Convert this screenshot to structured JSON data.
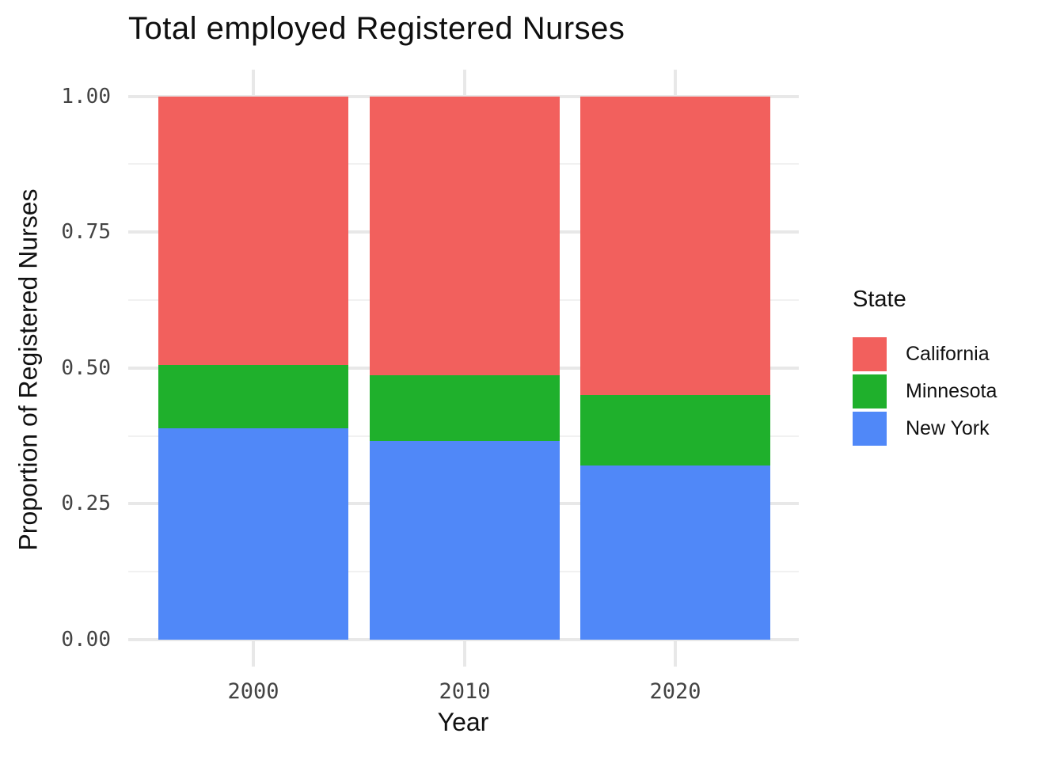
{
  "title": "Total employed Registered Nurses",
  "axes": {
    "x": {
      "label": "Year",
      "ticks": [
        "2000",
        "2010",
        "2020"
      ]
    },
    "y": {
      "label": "Proportion of Registered Nurses",
      "ticks": [
        {
          "label": "0.00",
          "value": 0.0
        },
        {
          "label": "0.25",
          "value": 0.25
        },
        {
          "label": "0.50",
          "value": 0.5
        },
        {
          "label": "0.75",
          "value": 0.75
        },
        {
          "label": "1.00",
          "value": 1.0
        }
      ]
    }
  },
  "legend": {
    "title": "State"
  },
  "chart_data": {
    "type": "bar",
    "subtype": "stacked-proportion",
    "title": "Total employed Registered Nurses",
    "xlabel": "Year",
    "ylabel": "Proportion of Registered Nurses",
    "categories": [
      "2000",
      "2010",
      "2020"
    ],
    "series": [
      {
        "name": "California",
        "color": "#F2605D",
        "values": [
          0.495,
          0.513,
          0.55
        ]
      },
      {
        "name": "Minnesota",
        "color": "#1FB02C",
        "values": [
          0.116,
          0.121,
          0.13
        ]
      },
      {
        "name": "New York",
        "color": "#5088F8",
        "values": [
          0.389,
          0.366,
          0.32
        ]
      }
    ],
    "stack_order_bottom_to_top": [
      "New York",
      "Minnesota",
      "California"
    ],
    "ylim": [
      0,
      1
    ],
    "y_major_ticks": [
      0,
      0.25,
      0.5,
      0.75,
      1.0
    ],
    "y_minor_ticks": [
      0.125,
      0.375,
      0.625,
      0.875
    ],
    "grid": true,
    "legend_position": "right",
    "colors": {
      "background": "#ffffff",
      "grid_major": "#E8E8E8",
      "grid_minor": "#F1F1F1",
      "tick_text": "#434343"
    }
  }
}
